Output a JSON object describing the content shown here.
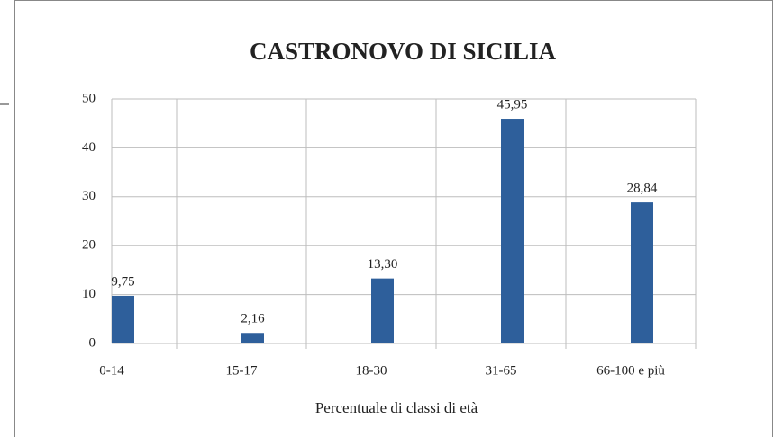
{
  "chart_data": {
    "type": "bar",
    "title": "CASTRONOVO DI SICILIA",
    "x_label": "Percentuale di classi di età",
    "categories": [
      "0-14",
      "15-17",
      "18-30",
      "31-65",
      "66-100 e più"
    ],
    "values": [
      9.75,
      2.16,
      13.3,
      45.95,
      28.84
    ],
    "value_labels": [
      "9,75",
      "2,16",
      "13,30",
      "45,95",
      "28,84"
    ],
    "color": "#2e5f9b",
    "ylim": [
      0,
      50
    ],
    "yticks": [
      0,
      10,
      20,
      30,
      40,
      50
    ],
    "grid": true
  }
}
